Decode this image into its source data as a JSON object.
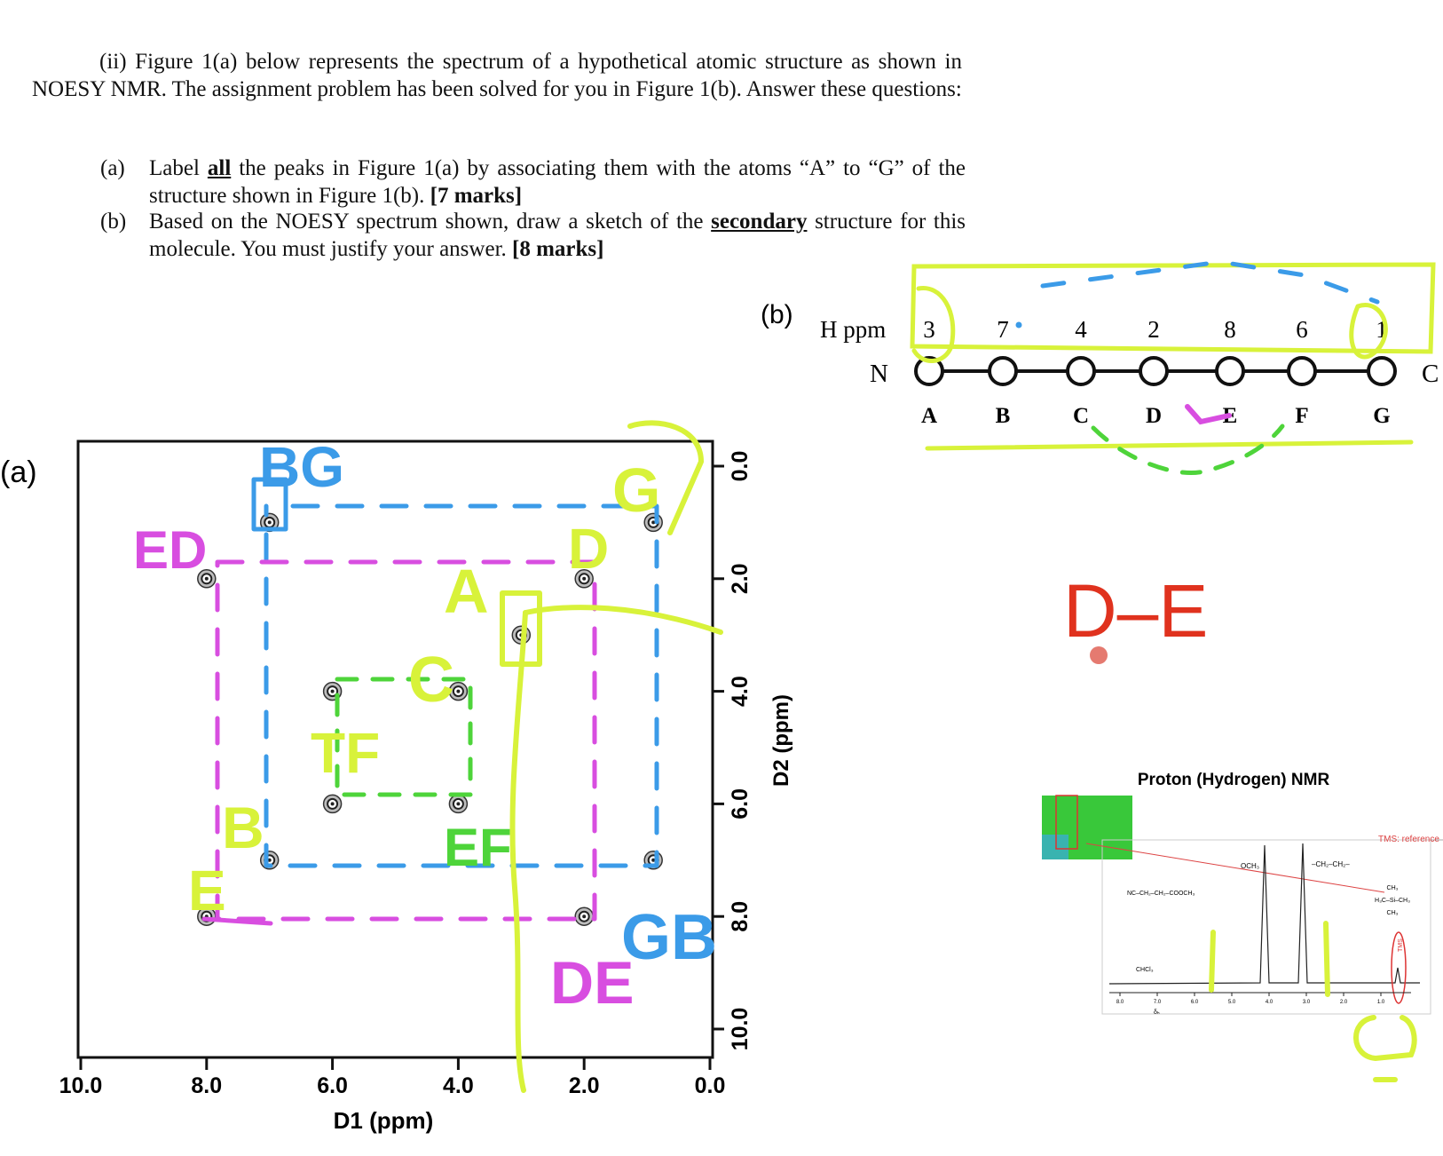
{
  "question": {
    "intro": "(ii) Figure 1(a) below represents the spectrum of a hypothetical atomic structure as shown in NOESY NMR. The assignment problem has been solved for you in Figure 1(b). Answer these questions:",
    "part_a": {
      "label": "(a)",
      "t1": "Label ",
      "t2": "all",
      "t3": " the peaks in Figure 1(a) by associating them with the atoms “A” to “G” of the structure shown in Figure 1(b). ",
      "marks": "[7 marks]"
    },
    "part_b": {
      "label": "(b)",
      "t1": "Based on the NOESY spectrum shown, draw a sketch of the ",
      "t2": "secondary",
      "t3": " structure for this molecule. You must justify your answer. ",
      "marks": "[8 marks]"
    }
  },
  "figure_a": {
    "panel_label": "(a)",
    "xlabel": "D1 (ppm)",
    "ylabel": "D2 (ppm)",
    "xticks": [
      "10.0",
      "8.0",
      "6.0",
      "4.0",
      "2.0",
      "0.0"
    ],
    "yticks": [
      "0.0",
      "2.0",
      "4.0",
      "6.0",
      "8.0",
      "10.0"
    ]
  },
  "chart_data": {
    "type": "scatter",
    "title": "",
    "xlabel": "D1 (ppm)",
    "ylabel": "D2 (ppm)",
    "xlim": [
      10.0,
      0.0
    ],
    "ylim": [
      0.0,
      10.0
    ],
    "points": [
      {
        "x": 7.0,
        "y": 1.0
      },
      {
        "x": 0.9,
        "y": 1.0
      },
      {
        "x": 8.0,
        "y": 2.0
      },
      {
        "x": 2.0,
        "y": 2.0
      },
      {
        "x": 3.0,
        "y": 3.0
      },
      {
        "x": 6.0,
        "y": 4.0
      },
      {
        "x": 4.0,
        "y": 4.0
      },
      {
        "x": 6.0,
        "y": 6.0
      },
      {
        "x": 4.0,
        "y": 6.0
      },
      {
        "x": 7.0,
        "y": 7.0
      },
      {
        "x": 0.9,
        "y": 7.0
      },
      {
        "x": 8.0,
        "y": 8.0
      },
      {
        "x": 2.0,
        "y": 8.0
      }
    ]
  },
  "figure_b": {
    "panel_label": "(b)",
    "h_ppm_label": "H ppm",
    "ppm_values": [
      "3",
      "7",
      "4",
      "2",
      "8",
      "6",
      "1"
    ],
    "atoms": [
      "A",
      "B",
      "C",
      "D",
      "E",
      "F",
      "G"
    ],
    "n_terminus": "N",
    "c_terminus": "C"
  },
  "annotations": {
    "spectrum_labels": [
      "BG",
      "ED",
      "D",
      "G",
      "A",
      "C",
      "TF",
      "EF",
      "B",
      "E",
      "GB",
      "DE"
    ],
    "de_note": "D–E"
  },
  "inset": {
    "title": "Proton (Hydrogen) NMR",
    "tms_label": "TMS: reference",
    "och3": "OCH₃",
    "ch2ch2": "–CH₂–CH₂–",
    "formula": "NC–CH₂–CH₂–COOCH₃",
    "chcl3": "CHCl₃",
    "tms_box": "TMS",
    "tms_struct": [
      "CH₃",
      "H₃C–Si–CH₃",
      "CH₃"
    ],
    "axis_ticks": [
      "8.0",
      "7.0",
      "6.0",
      "5.0",
      "4.0",
      "3.0",
      "2.0",
      "1.0"
    ],
    "axis_label": "δₕ"
  },
  "colors": {
    "ink": "#111111",
    "yellow": "#d8f23a",
    "blue": "#3b9be8",
    "magenta": "#d84ee0",
    "green": "#4ed43a",
    "red": "#e0321e"
  }
}
